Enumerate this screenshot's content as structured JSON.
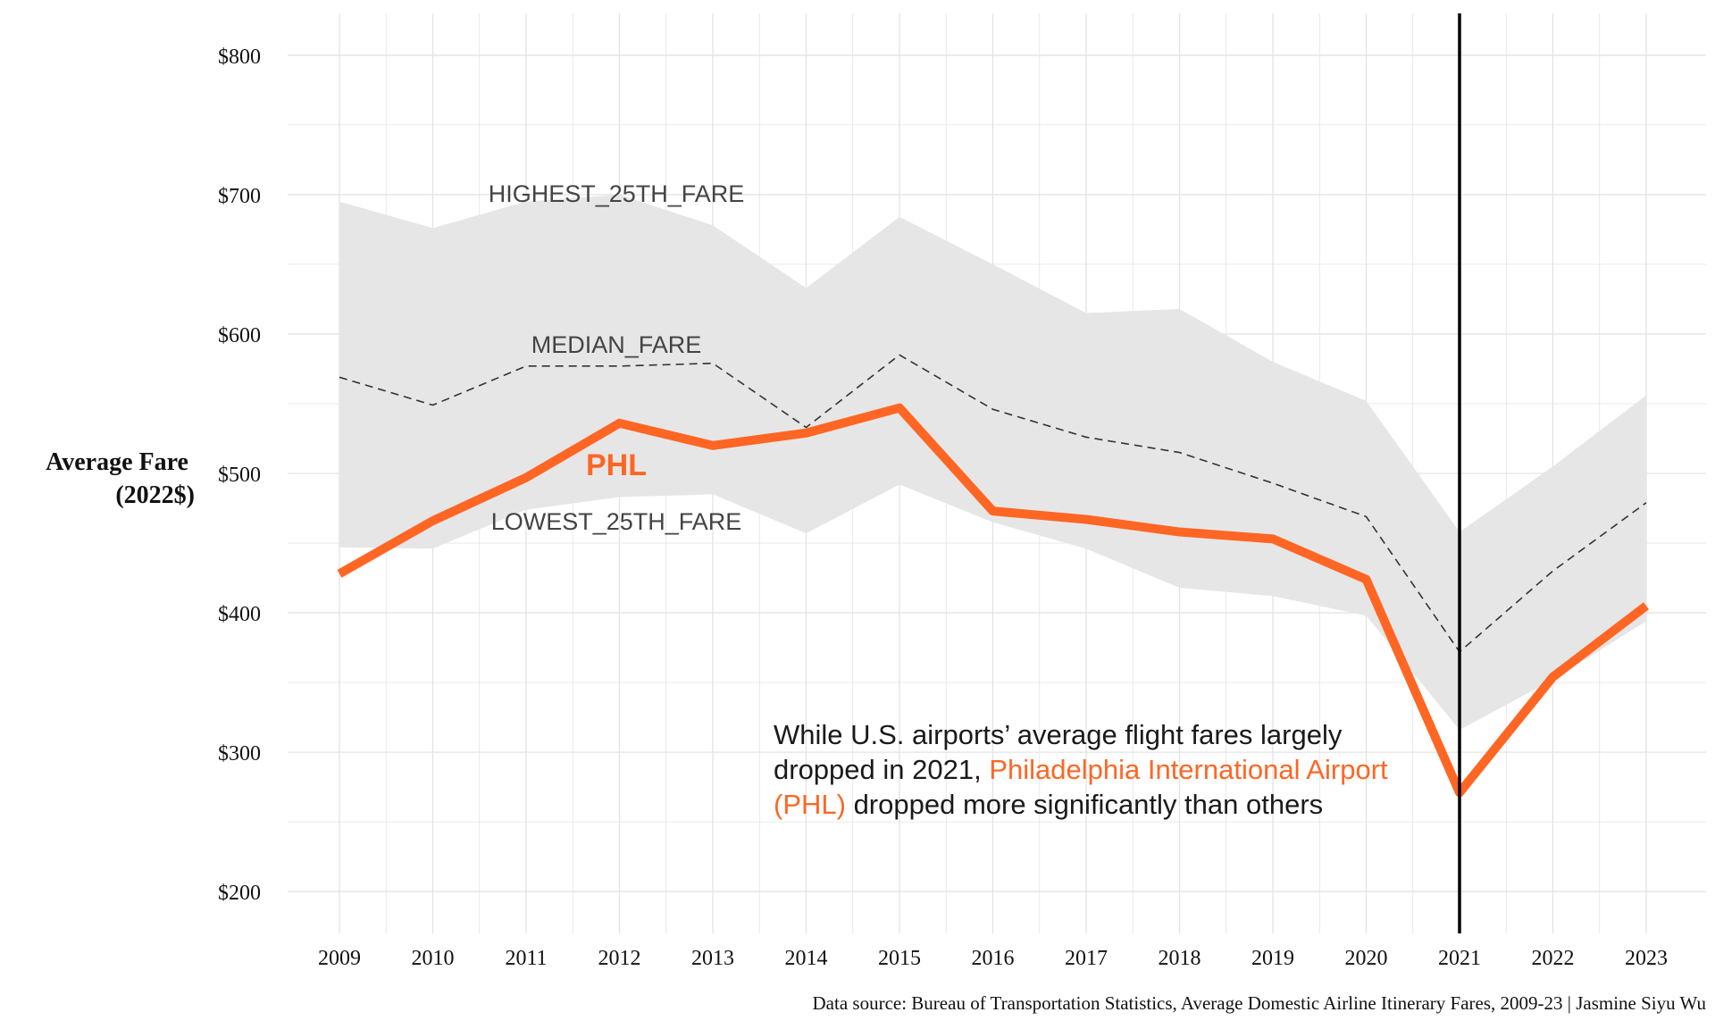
{
  "chart_data": {
    "type": "line",
    "x": [
      2009,
      2010,
      2011,
      2012,
      2013,
      2014,
      2015,
      2016,
      2017,
      2018,
      2019,
      2020,
      2021,
      2022,
      2023
    ],
    "series": [
      {
        "name": "HIGHEST_25TH_FARE",
        "values": [
          695,
          676,
          695,
          700,
          678,
          633,
          684,
          650,
          615,
          618,
          580,
          552,
          458,
          505,
          556
        ]
      },
      {
        "name": "MEDIAN_FARE",
        "values": [
          569,
          549,
          577,
          577,
          579,
          533,
          585,
          546,
          526,
          515,
          493,
          469,
          372,
          430,
          479
        ]
      },
      {
        "name": "LOWEST_25TH_FARE",
        "values": [
          447,
          446,
          474,
          483,
          485,
          457,
          492,
          465,
          446,
          418,
          412,
          398,
          316,
          352,
          394
        ]
      },
      {
        "name": "PHL",
        "values": [
          428,
          466,
          497,
          536,
          520,
          529,
          547,
          473,
          467,
          458,
          453,
          424,
          271,
          354,
          405
        ]
      }
    ],
    "ylabel": "Average Fare\n(2022$)",
    "ylim": [
      170,
      830
    ],
    "yticks": [
      200,
      300,
      400,
      500,
      600,
      700,
      800
    ],
    "ytick_labels": [
      "$200",
      "$300",
      "$400",
      "$500",
      "$600",
      "$700",
      "$800"
    ],
    "xtick_labels": [
      "2009",
      "2010",
      "2011",
      "2012",
      "2013",
      "2014",
      "2015",
      "2016",
      "2017",
      "2018",
      "2019",
      "2020",
      "2021",
      "2022",
      "2023"
    ],
    "reference_line_x": 2021,
    "grid": true,
    "annotation": {
      "line1": "While U.S. airports’ average flight fares largely",
      "line2_a": "dropped in 2021, ",
      "line2_b": "Philadelphia International Airport",
      "line3_a": "(PHL)",
      "line3_b": " dropped more significantly than others"
    },
    "caption": "Data source: Bureau of Transportation Statistics, Average Domestic Airline Itinerary Fares, 2009-23 | Jasmine Siyu Wu"
  },
  "colors": {
    "phl": "#ff6624",
    "band": "#e6e6e6",
    "median": "#333333",
    "refline": "#000000",
    "grid": "#e3e3e3"
  }
}
